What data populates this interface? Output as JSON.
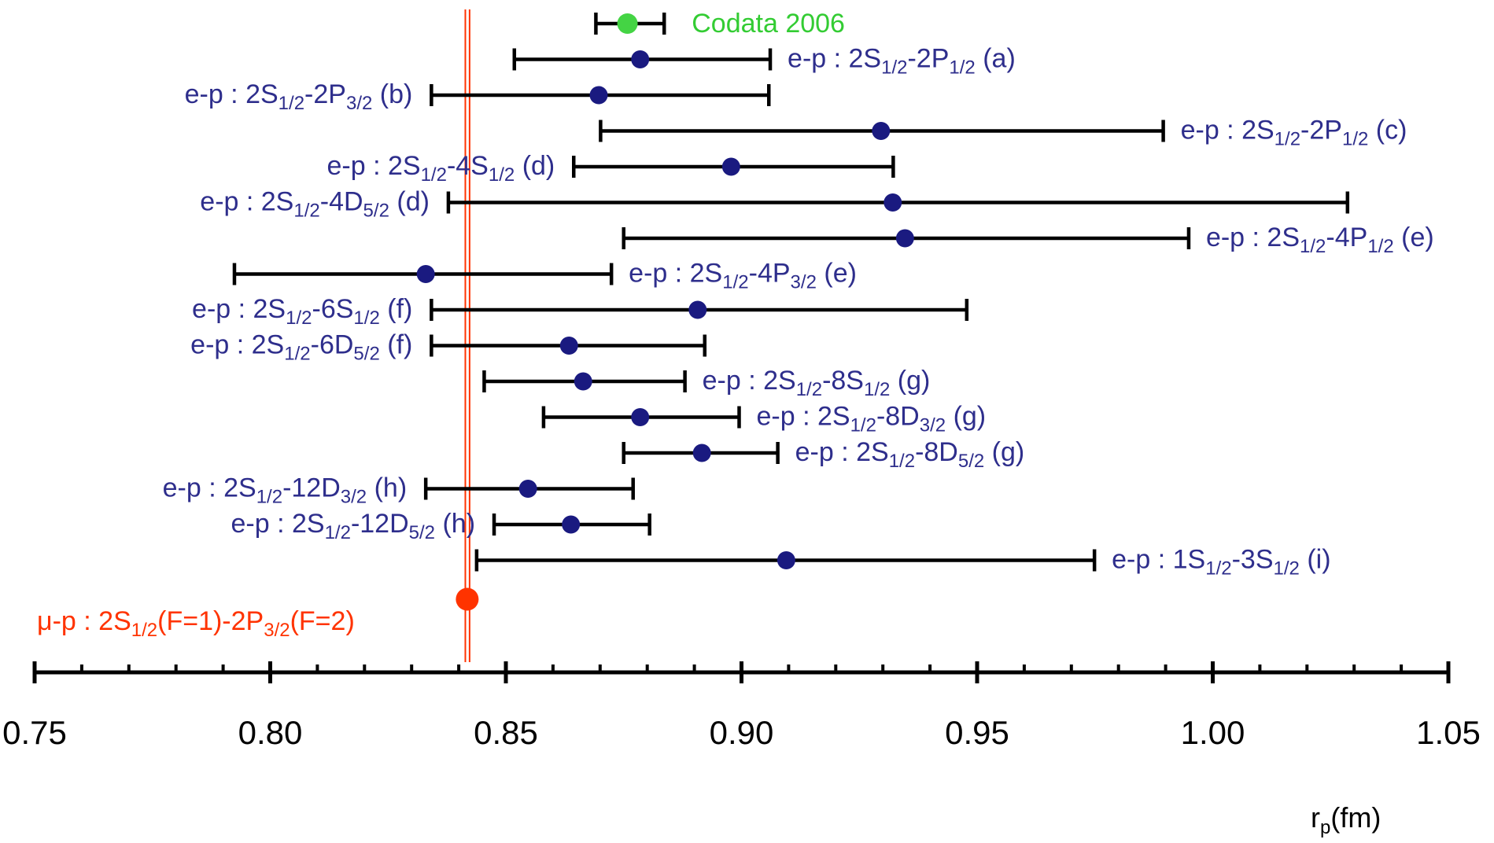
{
  "chart_data": {
    "type": "scatter",
    "title": "",
    "xlabel": {
      "main": "r",
      "sub": "p",
      "after": "(fm)"
    },
    "ylabel": "",
    "xlim": [
      0.75,
      1.05
    ],
    "major_ticks": [
      0.75,
      0.8,
      0.85,
      0.9,
      0.95,
      1.0,
      1.05
    ],
    "major_tick_labels": [
      "0.75",
      "0.80",
      "0.85",
      "0.90",
      "0.95",
      "1.00",
      "1.05"
    ],
    "minor_tick_step": 0.01,
    "grid": false,
    "colors": {
      "ep": "#1a1a80",
      "ep_text": "#2e2e8c",
      "codata": "#44d444",
      "codata_text": "#33cc33",
      "muon": "#ff3300",
      "muon_text": "#ff3300",
      "axis": "#000000"
    },
    "codata": {
      "value": 0.8758,
      "err_low": 0.8691,
      "err_high": 0.8836,
      "label": "Codata 2006"
    },
    "muon": {
      "value": 0.8418,
      "band": [
        0.8414,
        0.8423
      ],
      "label": [
        {
          "t": "μ-p : 2S",
          "s": false
        },
        {
          "t": "1/2",
          "s": true
        },
        {
          "t": "(F=1)-2P",
          "s": false
        },
        {
          "t": "3/2",
          "s": true
        },
        {
          "t": "(F=2)",
          "s": false
        }
      ]
    },
    "series": [
      {
        "value": 0.8785,
        "err_low": 0.8518,
        "err_high": 0.9061,
        "side": "right",
        "label": [
          {
            "t": "e-p : 2S",
            "s": false
          },
          {
            "t": "1/2",
            "s": true
          },
          {
            "t": "-2P",
            "s": false
          },
          {
            "t": "1/2",
            "s": true
          },
          {
            "t": " (a)",
            "s": false
          }
        ]
      },
      {
        "value": 0.8697,
        "err_low": 0.8342,
        "err_high": 0.9058,
        "side": "left",
        "label": [
          {
            "t": "e-p : 2S",
            "s": false
          },
          {
            "t": "1/2",
            "s": true
          },
          {
            "t": "-2P",
            "s": false
          },
          {
            "t": "3/2",
            "s": true
          },
          {
            "t": " (b)",
            "s": false
          }
        ]
      },
      {
        "value": 0.9296,
        "err_low": 0.8701,
        "err_high": 0.9895,
        "side": "right",
        "label": [
          {
            "t": "e-p : 2S",
            "s": false
          },
          {
            "t": "1/2",
            "s": true
          },
          {
            "t": "-2P",
            "s": false
          },
          {
            "t": "1/2",
            "s": true
          },
          {
            "t": " (c)",
            "s": false
          }
        ]
      },
      {
        "value": 0.8978,
        "err_low": 0.8644,
        "err_high": 0.9322,
        "side": "left",
        "label": [
          {
            "t": "e-p : 2S",
            "s": false
          },
          {
            "t": "1/2",
            "s": true
          },
          {
            "t": "-4S",
            "s": false
          },
          {
            "t": "1/2",
            "s": true
          },
          {
            "t": " (d)",
            "s": false
          }
        ]
      },
      {
        "value": 0.9321,
        "err_low": 0.8378,
        "err_high": 1.0286,
        "side": "left",
        "label": [
          {
            "t": "e-p : 2S",
            "s": false
          },
          {
            "t": "1/2",
            "s": true
          },
          {
            "t": "-4D",
            "s": false
          },
          {
            "t": "5/2",
            "s": true
          },
          {
            "t": " (d)",
            "s": false
          }
        ]
      },
      {
        "value": 0.9347,
        "err_low": 0.875,
        "err_high": 0.9949,
        "side": "right",
        "label": [
          {
            "t": "e-p : 2S",
            "s": false
          },
          {
            "t": "1/2",
            "s": true
          },
          {
            "t": "-4P",
            "s": false
          },
          {
            "t": "1/2",
            "s": true
          },
          {
            "t": " (e)",
            "s": false
          }
        ]
      },
      {
        "value": 0.833,
        "err_low": 0.7924,
        "err_high": 0.8724,
        "side": "right",
        "label": [
          {
            "t": "e-p : 2S",
            "s": false
          },
          {
            "t": "1/2",
            "s": true
          },
          {
            "t": "-4P",
            "s": false
          },
          {
            "t": "3/2",
            "s": true
          },
          {
            "t": " (e)",
            "s": false
          }
        ]
      },
      {
        "value": 0.8907,
        "err_low": 0.8342,
        "err_high": 0.9478,
        "side": "left",
        "label": [
          {
            "t": "e-p : 2S",
            "s": false
          },
          {
            "t": "1/2",
            "s": true
          },
          {
            "t": "-6S",
            "s": false
          },
          {
            "t": "1/2",
            "s": true
          },
          {
            "t": " (f)",
            "s": false
          }
        ]
      },
      {
        "value": 0.8634,
        "err_low": 0.8342,
        "err_high": 0.8922,
        "side": "left",
        "label": [
          {
            "t": "e-p : 2S",
            "s": false
          },
          {
            "t": "1/2",
            "s": true
          },
          {
            "t": "-6D",
            "s": false
          },
          {
            "t": "5/2",
            "s": true
          },
          {
            "t": " (f)",
            "s": false
          }
        ]
      },
      {
        "value": 0.8664,
        "err_low": 0.8454,
        "err_high": 0.888,
        "side": "right",
        "label": [
          {
            "t": "e-p : 2S",
            "s": false
          },
          {
            "t": "1/2",
            "s": true
          },
          {
            "t": "-8S",
            "s": false
          },
          {
            "t": "1/2",
            "s": true
          },
          {
            "t": " (g)",
            "s": false
          }
        ]
      },
      {
        "value": 0.8785,
        "err_low": 0.858,
        "err_high": 0.8995,
        "side": "right",
        "label": [
          {
            "t": "e-p : 2S",
            "s": false
          },
          {
            "t": "1/2",
            "s": true
          },
          {
            "t": "-8D",
            "s": false
          },
          {
            "t": "3/2",
            "s": true
          },
          {
            "t": " (g)",
            "s": false
          }
        ]
      },
      {
        "value": 0.8916,
        "err_low": 0.875,
        "err_high": 0.9077,
        "side": "right",
        "label": [
          {
            "t": "e-p : 2S",
            "s": false
          },
          {
            "t": "1/2",
            "s": true
          },
          {
            "t": "-8D",
            "s": false
          },
          {
            "t": "5/2",
            "s": true
          },
          {
            "t": " (g)",
            "s": false
          }
        ]
      },
      {
        "value": 0.8547,
        "err_low": 0.833,
        "err_high": 0.877,
        "side": "left",
        "label": [
          {
            "t": "e-p : 2S",
            "s": false
          },
          {
            "t": "1/2",
            "s": true
          },
          {
            "t": "-12D",
            "s": false
          },
          {
            "t": "3/2",
            "s": true
          },
          {
            "t": " (h)",
            "s": false
          }
        ]
      },
      {
        "value": 0.8638,
        "err_low": 0.8475,
        "err_high": 0.8805,
        "side": "left",
        "label": [
          {
            "t": "e-p : 2S",
            "s": false
          },
          {
            "t": "1/2",
            "s": true
          },
          {
            "t": "-12D",
            "s": false
          },
          {
            "t": "5/2",
            "s": true
          },
          {
            "t": " (h)",
            "s": false
          }
        ]
      },
      {
        "value": 0.9095,
        "err_low": 0.8438,
        "err_high": 0.9749,
        "side": "right",
        "label": [
          {
            "t": "e-p : 1S",
            "s": false
          },
          {
            "t": "1/2",
            "s": true
          },
          {
            "t": "-3S",
            "s": false
          },
          {
            "t": "1/2",
            "s": true
          },
          {
            "t": " (i)",
            "s": false
          }
        ]
      }
    ]
  }
}
